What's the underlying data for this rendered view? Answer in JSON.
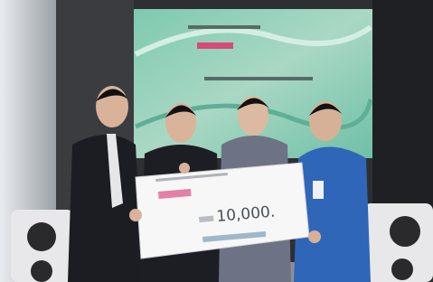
{
  "check": {
    "amount": "10,000."
  }
}
